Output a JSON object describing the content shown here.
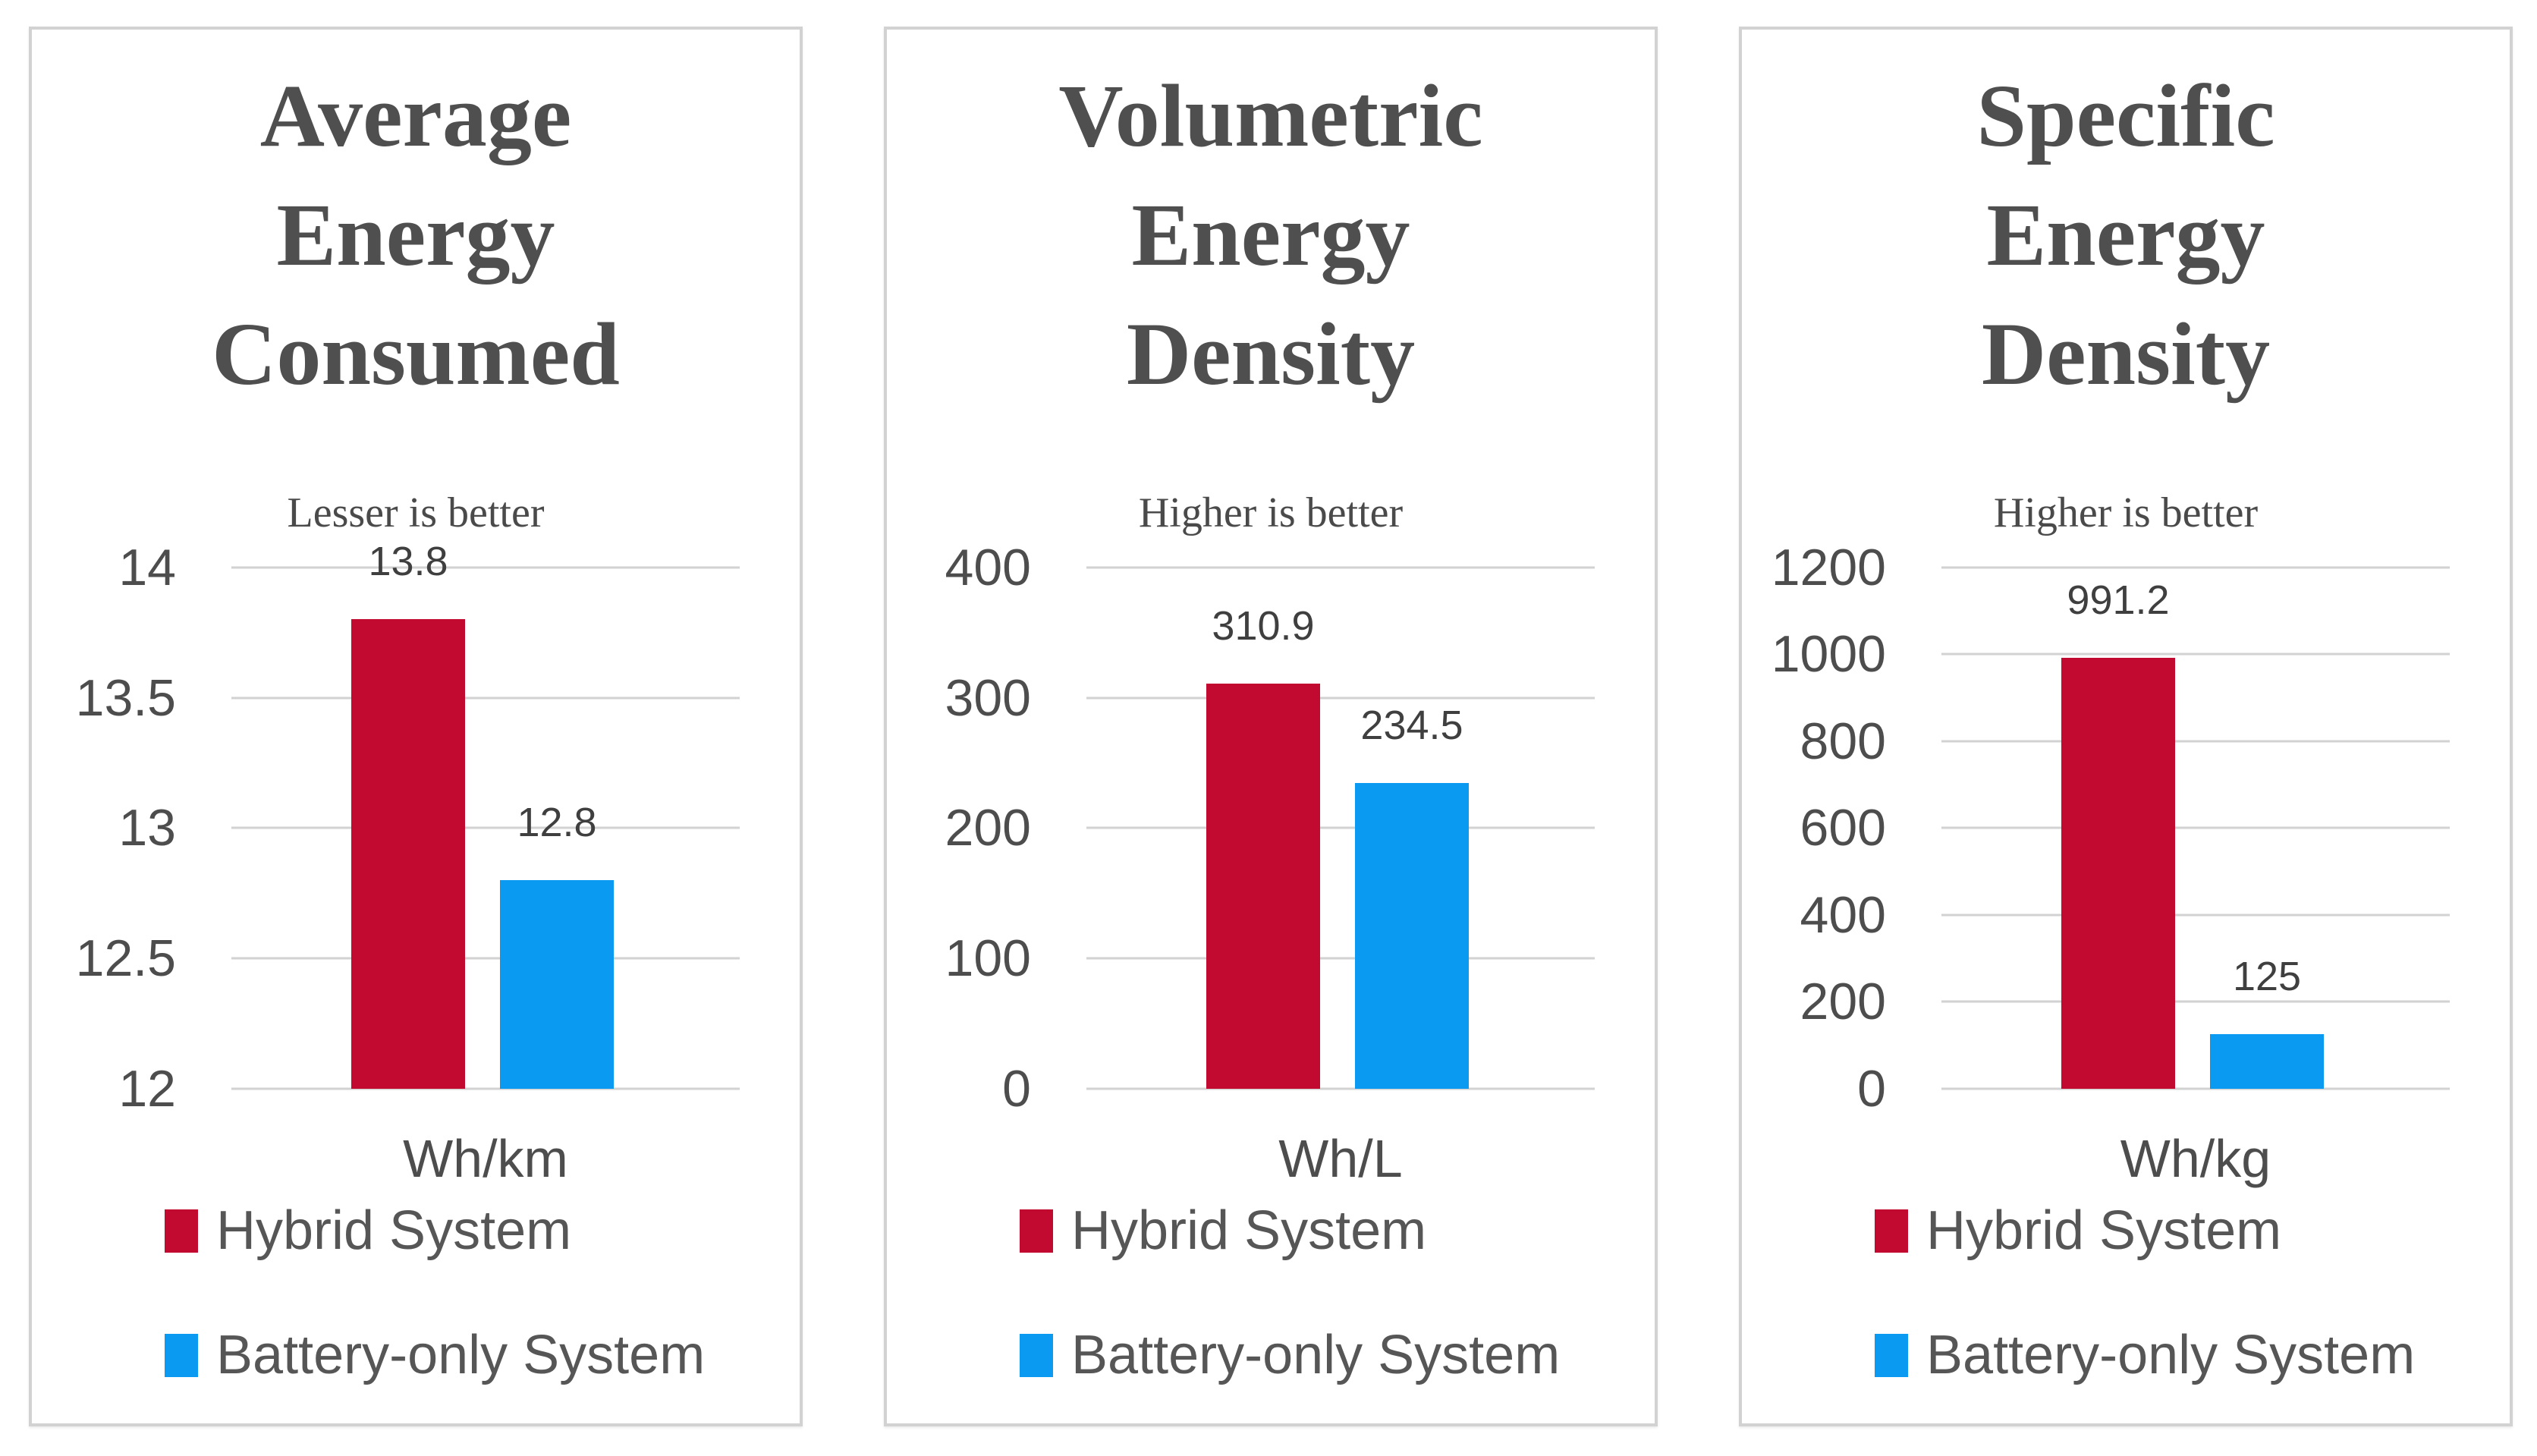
{
  "figure": {
    "background_color": "#ffffff",
    "panel_border_color": "#d2d2d2",
    "gridline_color": "#d2d2d2",
    "title_color": "#4f4f4f",
    "label_color": "#3f3f3f"
  },
  "legend": {
    "items": [
      {
        "label": "Hybrid System",
        "color": "#c20a31"
      },
      {
        "label": "Battery-only System",
        "color": "#0a9af2"
      }
    ]
  },
  "chart_data": [
    {
      "type": "bar",
      "title": "Average\nEnergy\nConsumed",
      "subtitle": "Lesser is better",
      "xlabel": "Wh/km",
      "categories": [
        "Hybrid System",
        "Battery-only System"
      ],
      "series": [
        {
          "name": "Hybrid System",
          "value": 13.8,
          "label": "13.8",
          "color": "#c20a31"
        },
        {
          "name": "Battery-only System",
          "value": 12.8,
          "label": "12.8",
          "color": "#0a9af2"
        }
      ],
      "ylim": [
        12,
        14
      ],
      "yticks": [
        14,
        13.5,
        13,
        12.5,
        12
      ],
      "grid": true,
      "legend_position": "bottom-left"
    },
    {
      "type": "bar",
      "title": "Volumetric\nEnergy\nDensity",
      "subtitle": "Higher is better",
      "xlabel": "Wh/L",
      "categories": [
        "Hybrid System",
        "Battery-only System"
      ],
      "series": [
        {
          "name": "Hybrid System",
          "value": 310.9,
          "label": "310.9",
          "color": "#c20a31"
        },
        {
          "name": "Battery-only System",
          "value": 234.5,
          "label": "234.5",
          "color": "#0a9af2"
        }
      ],
      "ylim": [
        0,
        400
      ],
      "yticks": [
        400,
        300,
        200,
        100,
        0
      ],
      "grid": true,
      "legend_position": "bottom-left"
    },
    {
      "type": "bar",
      "title": "Specific\nEnergy\nDensity",
      "subtitle": "Higher is better",
      "xlabel": "Wh/kg",
      "categories": [
        "Hybrid System",
        "Battery-only System"
      ],
      "series": [
        {
          "name": "Hybrid System",
          "value": 991.2,
          "label": "991.2",
          "color": "#c20a31"
        },
        {
          "name": "Battery-only System",
          "value": 125,
          "label": "125",
          "color": "#0a9af2"
        }
      ],
      "ylim": [
        0,
        1200
      ],
      "yticks": [
        1200,
        1000,
        800,
        600,
        400,
        200,
        0
      ],
      "grid": true,
      "legend_position": "bottom-left"
    }
  ]
}
